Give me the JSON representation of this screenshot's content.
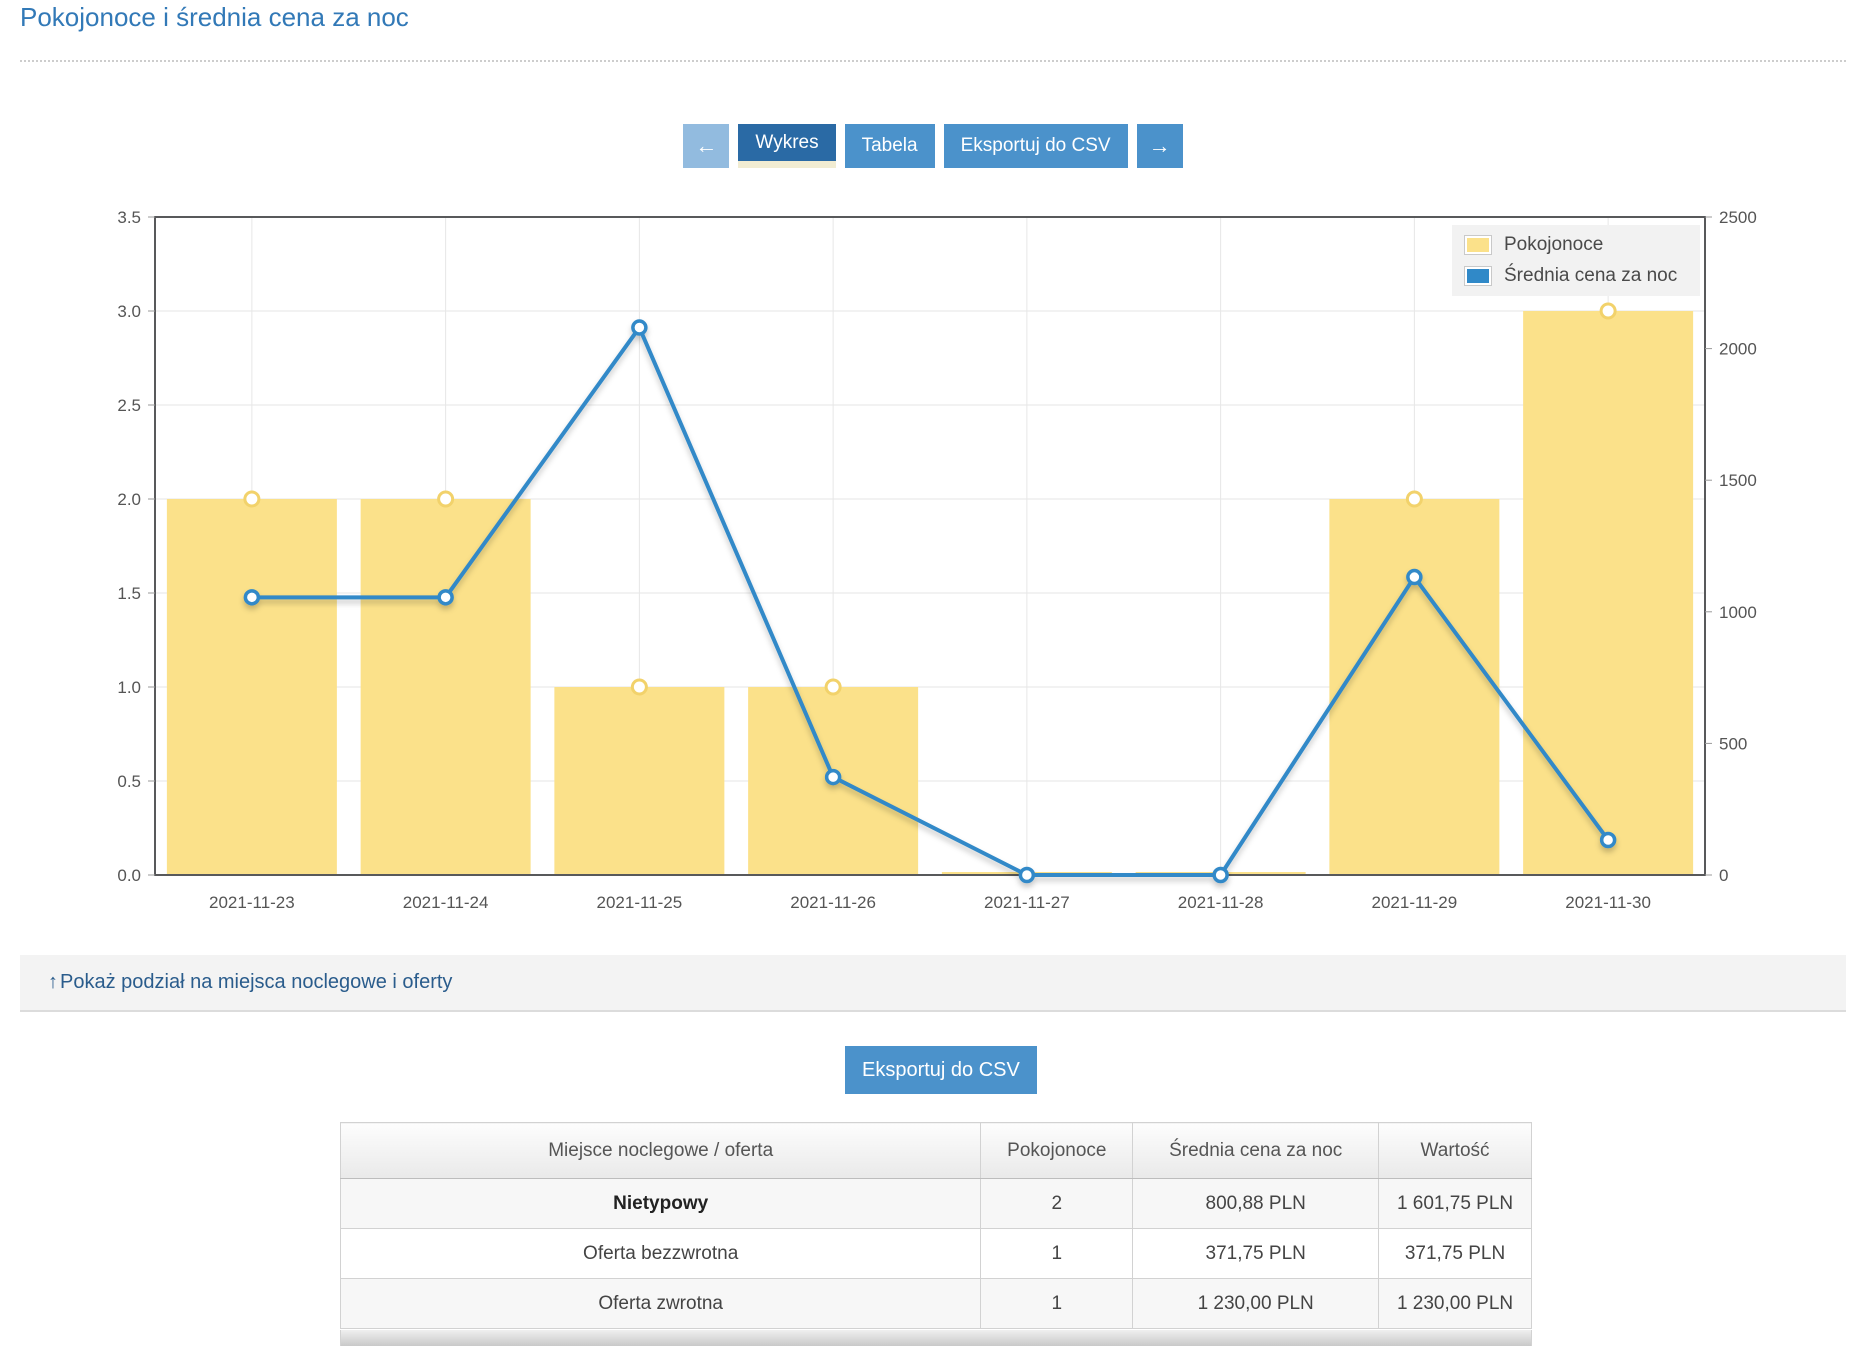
{
  "page": {
    "title": "Pokojonoce i średnia cena za noc"
  },
  "toolbar": {
    "prev_icon": "left-arrow",
    "next_icon": "right-arrow",
    "chart_tab": "Wykres",
    "table_tab": "Tabela",
    "export_csv": "Eksportuj do CSV"
  },
  "chart_data": {
    "type": "bar+line",
    "categories": [
      "2021-11-23",
      "2021-11-24",
      "2021-11-25",
      "2021-11-26",
      "2021-11-27",
      "2021-11-28",
      "2021-11-29",
      "2021-11-30"
    ],
    "series": [
      {
        "name": "Pokojonoce",
        "type": "bar",
        "axis": "left",
        "color": "#FBE18A",
        "marker_ring": "#F2D26B",
        "values": [
          2,
          2,
          1,
          1,
          0,
          0,
          2,
          3
        ]
      },
      {
        "name": "Średnia cena za noc",
        "type": "line",
        "axis": "right",
        "color": "#3089C8",
        "values": [
          1055,
          1055,
          2080,
          372,
          0,
          0,
          1132,
          133
        ]
      }
    ],
    "left_axis": {
      "min": 0,
      "max": 3.5,
      "step": 0.5,
      "ticks": [
        "0.0",
        "0.5",
        "1.0",
        "1.5",
        "2.0",
        "2.5",
        "3.0",
        "3.5"
      ]
    },
    "right_axis": {
      "min": 0,
      "max": 2500,
      "step": 500,
      "ticks": [
        "0",
        "500",
        "1000",
        "1500",
        "2000",
        "2500"
      ]
    },
    "grid": true,
    "legend_position": "top-right"
  },
  "breakdown": {
    "icon": "up-arrow",
    "label": "Pokaż podział na miejsca noclegowe i oferty"
  },
  "export_button": {
    "label": "Eksportuj do CSV"
  },
  "table": {
    "headers": [
      "Miejsce noclegowe / oferta",
      "Pokojonoce",
      "Średnia cena za noc",
      "Wartość"
    ],
    "rows": [
      {
        "name": "Nietypowy",
        "bold": true,
        "pokojonoce": "2",
        "srednia": "800,88 PLN",
        "wartosc": "1 601,75 PLN"
      },
      {
        "name": "Oferta bezzwrotna",
        "bold": false,
        "pokojonoce": "1",
        "srednia": "371,75 PLN",
        "wartosc": "371,75 PLN"
      },
      {
        "name": "Oferta zwrotna",
        "bold": false,
        "pokojonoce": "1",
        "srednia": "1 230,00 PLN",
        "wartosc": "1 230,00 PLN"
      }
    ]
  }
}
